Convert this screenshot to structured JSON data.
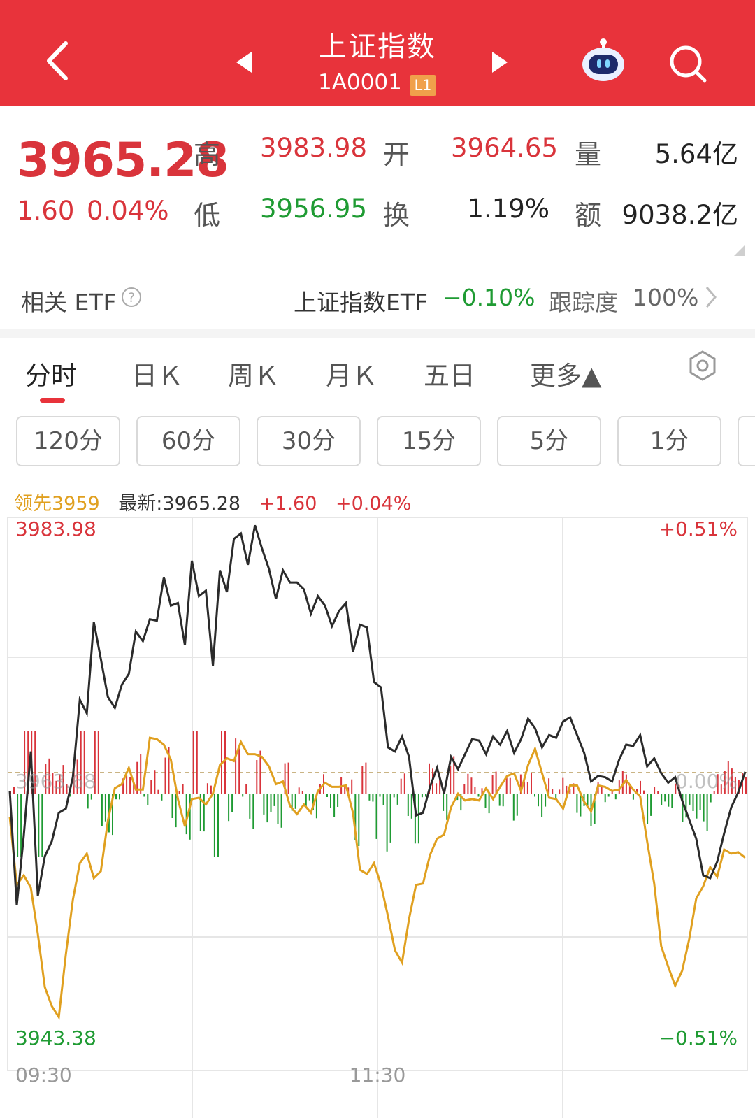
{
  "header": {
    "title": "上证指数",
    "code": "1A0001",
    "level_badge": "L1",
    "icons": [
      "back-icon",
      "prev-arrow-icon",
      "next-arrow-icon",
      "robot-assistant-icon",
      "search-icon"
    ]
  },
  "quote": {
    "price": "3965.28",
    "change": "1.60",
    "change_pct": "0.04%",
    "high_label": "高",
    "high": "3983.98",
    "low_label": "低",
    "low": "3956.95",
    "open_label": "开",
    "open": "3964.65",
    "turnover_label": "换",
    "turnover": "1.19%",
    "volume_label": "量",
    "volume": "5.64亿",
    "amount_label": "额",
    "amount": "9038.2亿"
  },
  "etf": {
    "label": "相关 ETF",
    "name": "上证指数ETF",
    "change": "−0.10%",
    "tracking_label": "跟踪度",
    "tracking": "100%"
  },
  "tabs": [
    {
      "label": "分时",
      "active": true
    },
    {
      "label": "日Ｋ"
    },
    {
      "label": "周Ｋ"
    },
    {
      "label": "月Ｋ"
    },
    {
      "label": "五日"
    },
    {
      "label": "更多▲"
    }
  ],
  "periods": [
    "120分",
    "60分",
    "30分",
    "15分",
    "5分",
    "1分"
  ],
  "legend": {
    "lead": "领先3959",
    "latest": "最新:3965.28",
    "chg": "+1.60",
    "pct": "+0.04%"
  },
  "colors": {
    "brand_red": "#e8333b",
    "up": "#d9343b",
    "down": "#1f9b33",
    "price_line": "#2b2b2b",
    "lead_line": "#e0a020"
  },
  "chart_data": {
    "type": "line",
    "y_max_label": "3983.98",
    "y_min_label": "3943.38",
    "y_ref_label": "3963.68",
    "pct_max_label": "+0.51%",
    "pct_min_label": "−0.51%",
    "pct_ref_label": "0.00%",
    "x_labels": [
      "09:30",
      "11:30"
    ],
    "ylim": [
      3943.38,
      3983.98
    ],
    "reference": 3963.68,
    "series": [
      {
        "values": [
          3963.9,
          3955.5,
          3960.6,
          3966.8,
          3956.2,
          3959.1,
          3960.2,
          3962.3,
          3962.6,
          3964.9,
          3970.6,
          3969.6,
          3976.3,
          3973.6,
          3970.8,
          3970.0,
          3971.7,
          3972.5,
          3975.6,
          3974.9,
          3976.5,
          3976.4,
          3979.6,
          3977.5,
          3977.7,
          3974.6,
          3980.8,
          3978.2,
          3978.6,
          3973.1,
          3980.1,
          3978.5,
          3982.4,
          3982.8,
          3980.5,
          3983.4,
          3981.7,
          3980.2,
          3978.0,
          3980.1,
          3979.2,
          3979.2,
          3978.7,
          3976.9,
          3978.2,
          3977.5,
          3976.0,
          3977.1,
          3977.7,
          3974.1,
          3976.1,
          3975.9,
          3971.9,
          3971.5,
          3967.1,
          3966.8,
          3967.9,
          3966.4,
          3962.1,
          3962.3,
          3964.2,
          3965.6,
          3963.7,
          3966.4,
          3965.5,
          3966.6,
          3967.7,
          3967.6,
          3966.6,
          3967.9,
          3967.3,
          3968.3,
          3966.7,
          3967.7,
          3969.2,
          3968.5,
          3967.1,
          3968.0,
          3967.8,
          3969.0,
          3969.3,
          3968.0,
          3966.7,
          3964.6,
          3965.0,
          3964.9,
          3964.6,
          3966.2,
          3967.3,
          3967.2,
          3968.0,
          3965.7,
          3966.3,
          3965.2,
          3964.5,
          3964.9,
          3963.2,
          3961.8,
          3960.4,
          3957.7,
          3957.5,
          3958.7,
          3960.8,
          3962.7,
          3963.8,
          3965.3
        ]
      },
      {
        "values": [
          3962.0,
          3957.0,
          3957.7,
          3956.8,
          3953.4,
          3949.5,
          3948.1,
          3947.3,
          3951.9,
          3955.9,
          3958.6,
          3959.3,
          3957.5,
          3958.0,
          3961.7,
          3964.1,
          3964.4,
          3965.6,
          3964.0,
          3964.0,
          3967.8,
          3967.7,
          3967.3,
          3966.2,
          3963.3,
          3961.3,
          3963.3,
          3963.4,
          3962.9,
          3963.7,
          3965.8,
          3966.3,
          3966.1,
          3967.5,
          3966.6,
          3966.6,
          3966.4,
          3965.7,
          3964.4,
          3964.6,
          3962.8,
          3962.2,
          3962.9,
          3962.3,
          3963.9,
          3964.5,
          3964.2,
          3964.2,
          3964.3,
          3962.3,
          3958.1,
          3957.8,
          3958.6,
          3957.0,
          3954.7,
          3952.2,
          3951.3,
          3954.5,
          3957.0,
          3957.1,
          3959.2,
          3960.4,
          3960.7,
          3962.7,
          3963.7,
          3963.2,
          3963.3,
          3963.2,
          3964.1,
          3963.3,
          3964.2,
          3965.0,
          3965.2,
          3963.9,
          3965.8,
          3967.0,
          3965.2,
          3963.4,
          3963.3,
          3962.6,
          3964.3,
          3964.3,
          3963.1,
          3962.4,
          3964.3,
          3964.2,
          3963.9,
          3964.0,
          3964.7,
          3964.0,
          3963.5,
          3960.2,
          3957.1,
          3952.5,
          3951.0,
          3949.6,
          3950.7,
          3953.0,
          3956.0,
          3956.9,
          3958.3,
          3957.6,
          3959.6,
          3959.3,
          3959.4,
          3959.0
        ]
      }
    ]
  }
}
